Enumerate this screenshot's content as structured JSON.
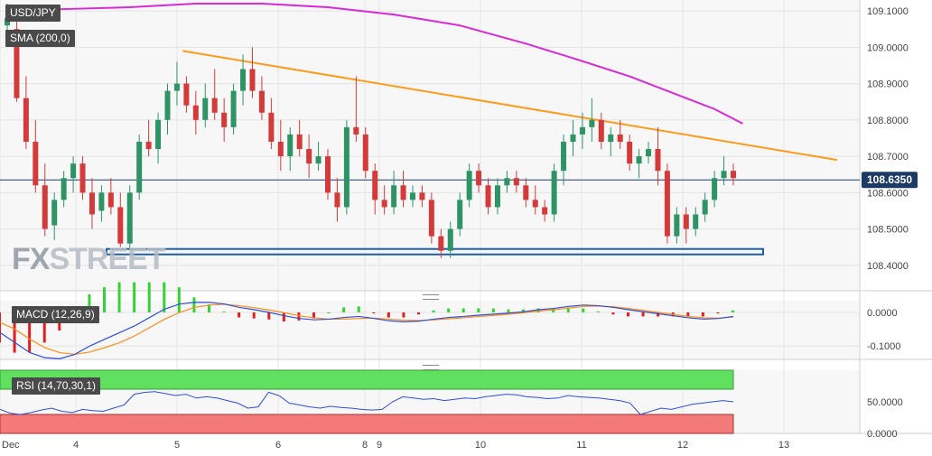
{
  "symbol": "USD/JPY",
  "sma_label": "SMA (200,0)",
  "watermark": {
    "part1": "FX",
    "part2": "STREET"
  },
  "last_price_label": "108.6350",
  "macd_label": "MACD (12,26,9)",
  "rsi_label": "RSI (14,70,30,1)",
  "colors": {
    "up": "#2e9466",
    "down": "#d43a3a",
    "sma": "#d62ad6",
    "trend": "#ff9a1c",
    "support": "#1f5fa6",
    "current": "#1d3a66",
    "macd_line": "#2f4fd8",
    "signal_line": "#ff8c1a",
    "rsi_line": "#2f4fd8",
    "overbought_zone": "#5fe05f",
    "oversold_zone": "#f47a7a"
  },
  "chart_data": [
    {
      "type": "candlestick",
      "title": "USD/JPY",
      "y_ticks": [
        "109.1000",
        "109.0000",
        "108.9000",
        "108.8000",
        "108.7000",
        "108.6000",
        "108.5000",
        "108.4000"
      ],
      "ylim": [
        108.33,
        109.13
      ],
      "x_ticks": [
        "Dec",
        "4",
        "5",
        "6",
        "8",
        "9",
        "10",
        "11",
        "12",
        "13"
      ],
      "current_price": 108.635,
      "candles_ohlc": [
        [
          109.06,
          109.12,
          109.02,
          109.08
        ],
        [
          109.05,
          109.08,
          108.85,
          108.86
        ],
        [
          108.86,
          108.92,
          108.72,
          108.74
        ],
        [
          108.74,
          108.8,
          108.6,
          108.62
        ],
        [
          108.62,
          108.68,
          108.48,
          108.5
        ],
        [
          108.51,
          108.6,
          108.47,
          108.58
        ],
        [
          108.58,
          108.66,
          108.56,
          108.64
        ],
        [
          108.64,
          108.7,
          108.6,
          108.68
        ],
        [
          108.68,
          108.7,
          108.58,
          108.6
        ],
        [
          108.6,
          108.64,
          108.5,
          108.54
        ],
        [
          108.55,
          108.62,
          108.52,
          108.6
        ],
        [
          108.6,
          108.64,
          108.54,
          108.56
        ],
        [
          108.56,
          108.6,
          108.45,
          108.46
        ],
        [
          108.46,
          108.62,
          108.44,
          108.6
        ],
        [
          108.6,
          108.76,
          108.58,
          108.74
        ],
        [
          108.74,
          108.8,
          108.7,
          108.72
        ],
        [
          108.72,
          108.82,
          108.68,
          108.8
        ],
        [
          108.8,
          108.9,
          108.76,
          108.88
        ],
        [
          108.88,
          108.96,
          108.84,
          108.9
        ],
        [
          108.9,
          108.92,
          108.82,
          108.84
        ],
        [
          108.84,
          108.88,
          108.76,
          108.8
        ],
        [
          108.8,
          108.9,
          108.78,
          108.86
        ],
        [
          108.86,
          108.94,
          108.8,
          108.82
        ],
        [
          108.82,
          108.86,
          108.74,
          108.78
        ],
        [
          108.78,
          108.9,
          108.76,
          108.88
        ],
        [
          108.88,
          108.98,
          108.84,
          108.94
        ],
        [
          108.94,
          109.0,
          108.86,
          108.88
        ],
        [
          108.88,
          108.92,
          108.8,
          108.82
        ],
        [
          108.82,
          108.86,
          108.72,
          108.74
        ],
        [
          108.74,
          108.8,
          108.66,
          108.7
        ],
        [
          108.7,
          108.78,
          108.66,
          108.76
        ],
        [
          108.76,
          108.8,
          108.7,
          108.72
        ],
        [
          108.72,
          108.76,
          108.64,
          108.68
        ],
        [
          108.68,
          108.74,
          108.66,
          108.7
        ],
        [
          108.7,
          108.72,
          108.58,
          108.6
        ],
        [
          108.6,
          108.64,
          108.52,
          108.56
        ],
        [
          108.56,
          108.8,
          108.54,
          108.78
        ],
        [
          108.78,
          108.92,
          108.74,
          108.76
        ],
        [
          108.76,
          108.78,
          108.64,
          108.66
        ],
        [
          108.66,
          108.68,
          108.54,
          108.58
        ],
        [
          108.58,
          108.62,
          108.54,
          108.56
        ],
        [
          108.56,
          108.66,
          108.54,
          108.62
        ],
        [
          108.62,
          108.66,
          108.56,
          108.58
        ],
        [
          108.58,
          108.62,
          108.56,
          108.6
        ],
        [
          108.6,
          108.62,
          108.56,
          108.58
        ],
        [
          108.58,
          108.6,
          108.46,
          108.48
        ],
        [
          108.48,
          108.5,
          108.42,
          108.44
        ],
        [
          108.44,
          108.52,
          108.42,
          108.5
        ],
        [
          108.5,
          108.6,
          108.48,
          108.58
        ],
        [
          108.58,
          108.68,
          108.56,
          108.66
        ],
        [
          108.66,
          108.68,
          108.6,
          108.62
        ],
        [
          108.62,
          108.64,
          108.54,
          108.56
        ],
        [
          108.56,
          108.64,
          108.54,
          108.62
        ],
        [
          108.62,
          108.66,
          108.6,
          108.64
        ],
        [
          108.64,
          108.66,
          108.6,
          108.62
        ],
        [
          108.62,
          108.64,
          108.56,
          108.58
        ],
        [
          108.58,
          108.62,
          108.54,
          108.56
        ],
        [
          108.56,
          108.58,
          108.52,
          108.54
        ],
        [
          108.54,
          108.68,
          108.52,
          108.66
        ],
        [
          108.66,
          108.76,
          108.62,
          108.74
        ],
        [
          108.74,
          108.8,
          108.7,
          108.76
        ],
        [
          108.76,
          108.82,
          108.72,
          108.78
        ],
        [
          108.78,
          108.86,
          108.74,
          108.8
        ],
        [
          108.8,
          108.82,
          108.72,
          108.74
        ],
        [
          108.74,
          108.78,
          108.7,
          108.76
        ],
        [
          108.76,
          108.8,
          108.72,
          108.74
        ],
        [
          108.74,
          108.76,
          108.66,
          108.68
        ],
        [
          108.68,
          108.72,
          108.64,
          108.7
        ],
        [
          108.7,
          108.74,
          108.68,
          108.72
        ],
        [
          108.72,
          108.78,
          108.62,
          108.66
        ],
        [
          108.66,
          108.68,
          108.46,
          108.48
        ],
        [
          108.48,
          108.56,
          108.46,
          108.54
        ],
        [
          108.54,
          108.56,
          108.46,
          108.5
        ],
        [
          108.5,
          108.56,
          108.48,
          108.54
        ],
        [
          108.54,
          108.6,
          108.52,
          108.58
        ],
        [
          108.58,
          108.66,
          108.56,
          108.64
        ],
        [
          108.64,
          108.7,
          108.62,
          108.66
        ],
        [
          108.66,
          108.68,
          108.62,
          108.64
        ]
      ],
      "sma200_points": [
        [
          0,
          109.1
        ],
        [
          6,
          109.105
        ],
        [
          13,
          109.11
        ],
        [
          20,
          109.12
        ],
        [
          27,
          109.12
        ],
        [
          34,
          109.11
        ],
        [
          41,
          109.09
        ],
        [
          48,
          109.06
        ],
        [
          55,
          109.01
        ],
        [
          60,
          108.97
        ],
        [
          66,
          108.92
        ],
        [
          71,
          108.87
        ],
        [
          75,
          108.83
        ],
        [
          78,
          108.79
        ]
      ],
      "trendline": {
        "from": [
          18.6,
          108.99
        ],
        "to": [
          88,
          108.69
        ]
      },
      "support_zone": [
        108.43,
        108.445
      ]
    },
    {
      "type": "bar",
      "title": "MACD (12,26,9)",
      "y_ticks": [
        "0.0000",
        "-0.1000"
      ],
      "ylim": [
        -0.14,
        0.035
      ],
      "macd_line": [
        -0.06,
        -0.09,
        -0.12,
        -0.135,
        -0.138,
        -0.125,
        -0.1,
        -0.08,
        -0.06,
        -0.04,
        -0.015,
        0.01,
        0.025,
        0.03,
        0.03,
        0.025,
        0.015,
        0.008,
        0.0,
        -0.01,
        -0.018,
        -0.022,
        -0.02,
        -0.015,
        -0.012,
        -0.018,
        -0.025,
        -0.028,
        -0.026,
        -0.02,
        -0.015,
        -0.012,
        -0.008,
        -0.005,
        -0.002,
        0.002,
        0.008,
        0.012,
        0.018,
        0.022,
        0.02,
        0.015,
        0.008,
        0.002,
        -0.004,
        -0.01,
        -0.016,
        -0.02,
        -0.018,
        -0.012
      ],
      "signal_line": [
        -0.03,
        -0.05,
        -0.08,
        -0.105,
        -0.12,
        -0.125,
        -0.118,
        -0.105,
        -0.09,
        -0.07,
        -0.045,
        -0.02,
        0.0,
        0.015,
        0.022,
        0.024,
        0.02,
        0.014,
        0.007,
        -0.001,
        -0.01,
        -0.016,
        -0.02,
        -0.02,
        -0.018,
        -0.017,
        -0.02,
        -0.023,
        -0.024,
        -0.022,
        -0.019,
        -0.016,
        -0.012,
        -0.009,
        -0.005,
        -0.001,
        0.004,
        0.008,
        0.013,
        0.018,
        0.019,
        0.017,
        0.012,
        0.006,
        0.0,
        -0.006,
        -0.012,
        -0.016,
        -0.017,
        -0.014
      ]
    },
    {
      "type": "line",
      "title": "RSI (14,70,30,1)",
      "y_ticks": [
        "50.0000",
        "0.0000"
      ],
      "ylim": [
        0,
        100
      ],
      "overbought": 70,
      "oversold": 30,
      "rsi_values": [
        38,
        32,
        30,
        33,
        37,
        40,
        35,
        33,
        38,
        36,
        35,
        40,
        45,
        62,
        65,
        66,
        63,
        60,
        62,
        56,
        58,
        56,
        52,
        48,
        40,
        42,
        65,
        60,
        48,
        45,
        42,
        40,
        43,
        41,
        40,
        38,
        37,
        38,
        50,
        58,
        56,
        54,
        55,
        52,
        54,
        56,
        55,
        58,
        60,
        62,
        61,
        58,
        57,
        55,
        56,
        60,
        58,
        57,
        56,
        54,
        52,
        48,
        30,
        35,
        40,
        38,
        42,
        46,
        48,
        50,
        52,
        50
      ]
    }
  ]
}
